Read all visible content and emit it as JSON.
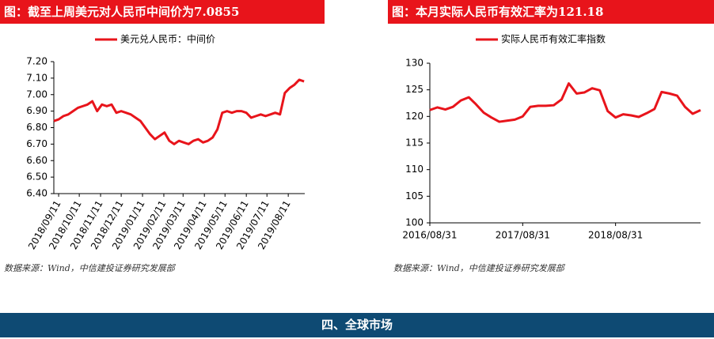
{
  "chart_data": [
    {
      "type": "line",
      "title": "图：截至上周美元对人民币中间价为7.0855",
      "x": [
        "2018/09/04",
        "2018/09/11",
        "2018/09/18",
        "2018/09/25",
        "2018/10/02",
        "2018/10/09",
        "2018/10/16",
        "2018/10/23",
        "2018/10/30",
        "2018/11/06",
        "2018/11/13",
        "2018/11/20",
        "2018/11/27",
        "2018/12/04",
        "2018/12/11",
        "2018/12/18",
        "2018/12/25",
        "2019/01/01",
        "2019/01/08",
        "2019/01/15",
        "2019/01/22",
        "2019/01/29",
        "2019/02/05",
        "2019/02/12",
        "2019/02/19",
        "2019/02/26",
        "2019/03/05",
        "2019/03/12",
        "2019/03/19",
        "2019/03/26",
        "2019/04/02",
        "2019/04/09",
        "2019/04/16",
        "2019/04/23",
        "2019/04/30",
        "2019/05/07",
        "2019/05/14",
        "2019/05/21",
        "2019/05/28",
        "2019/06/04",
        "2019/06/11",
        "2019/06/18",
        "2019/06/25",
        "2019/07/02",
        "2019/07/09",
        "2019/07/16",
        "2019/07/23",
        "2019/07/30",
        "2019/08/06",
        "2019/08/13",
        "2019/08/20",
        "2019/08/27",
        "2019/09/03"
      ],
      "series": [
        {
          "name": "美元兑人民币：中间价",
          "color": "#e8141b",
          "values": [
            6.84,
            6.85,
            6.87,
            6.88,
            6.9,
            6.92,
            6.93,
            6.94,
            6.96,
            6.9,
            6.94,
            6.93,
            6.94,
            6.89,
            6.9,
            6.89,
            6.88,
            6.86,
            6.84,
            6.8,
            6.76,
            6.73,
            6.75,
            6.77,
            6.72,
            6.7,
            6.72,
            6.71,
            6.7,
            6.72,
            6.73,
            6.71,
            6.72,
            6.74,
            6.79,
            6.89,
            6.9,
            6.89,
            6.9,
            6.9,
            6.89,
            6.86,
            6.87,
            6.88,
            6.87,
            6.88,
            6.89,
            6.88,
            7.01,
            7.04,
            7.06,
            7.09,
            7.08
          ]
        }
      ],
      "xlim": [
        "2018/09/04",
        "2019/09/04"
      ],
      "xticks": [
        "2018/09/11",
        "2018/10/11",
        "2018/11/11",
        "2018/12/11",
        "2019/01/11",
        "2019/02/11",
        "2019/03/11",
        "2019/04/11",
        "2019/05/11",
        "2019/06/11",
        "2019/07/11",
        "2019/08/11"
      ],
      "ylim": [
        6.4,
        7.2
      ],
      "yticks": [
        {
          "value": 6.4,
          "label": "6.40"
        },
        {
          "value": 6.5,
          "label": "6.50"
        },
        {
          "value": 6.6,
          "label": "6.60"
        },
        {
          "value": 6.7,
          "label": "6.70"
        },
        {
          "value": 6.8,
          "label": "6.80"
        },
        {
          "value": 6.9,
          "label": "6.90"
        },
        {
          "value": 7.0,
          "label": "7.00"
        },
        {
          "value": 7.1,
          "label": "7.10"
        },
        {
          "value": 7.2,
          "label": "7.20"
        }
      ],
      "source": "数据来源：Wind，中信建投证券研究发展部"
    },
    {
      "type": "line",
      "title": "图：本月实际人民币有效汇率为121.18",
      "x": [
        "2016/08/31",
        "2016/09/30",
        "2016/10/31",
        "2016/11/30",
        "2016/12/31",
        "2017/01/31",
        "2017/02/28",
        "2017/03/31",
        "2017/04/30",
        "2017/05/31",
        "2017/06/30",
        "2017/07/31",
        "2017/08/31",
        "2017/09/30",
        "2017/10/31",
        "2017/11/30",
        "2017/12/31",
        "2018/01/31",
        "2018/02/28",
        "2018/03/31",
        "2018/04/30",
        "2018/05/31",
        "2018/06/30",
        "2018/07/31",
        "2018/08/31",
        "2018/09/30",
        "2018/10/31",
        "2018/11/30",
        "2018/12/31",
        "2019/01/31",
        "2019/02/28",
        "2019/03/31",
        "2019/04/30",
        "2019/05/31",
        "2019/06/30",
        "2019/07/31"
      ],
      "series": [
        {
          "name": "实际人民币有效汇率指数",
          "color": "#e8141b",
          "values": [
            121.2,
            121.7,
            121.3,
            121.8,
            123.0,
            123.6,
            122.3,
            120.7,
            119.8,
            119.0,
            119.2,
            119.4,
            120.0,
            121.8,
            122.0,
            122.0,
            122.1,
            123.2,
            126.2,
            124.3,
            124.5,
            125.3,
            124.9,
            121.0,
            119.8,
            120.4,
            120.2,
            119.9,
            120.6,
            121.4,
            124.6,
            124.3,
            123.9,
            121.8,
            120.5,
            121.18
          ]
        }
      ],
      "xlim": [
        "2016/08/31",
        "2019/07/31"
      ],
      "xticks": [
        "2016/08/31",
        "2017/08/31",
        "2018/08/31"
      ],
      "ylim": [
        100,
        130
      ],
      "yticks": [
        100,
        105,
        110,
        115,
        120,
        125,
        130
      ],
      "source": "数据来源：Wind，中信建投证券研究发展部"
    }
  ],
  "section": {
    "title": "四、全球市场"
  }
}
